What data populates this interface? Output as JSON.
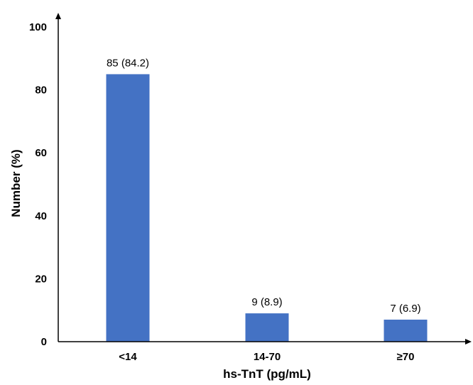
{
  "chart_data": {
    "type": "bar",
    "categories": [
      "<14",
      "14-70",
      "≥70"
    ],
    "values": [
      85,
      9,
      7
    ],
    "data_labels": [
      "85 (84.2)",
      "9 (8.9)",
      "7 (6.9)"
    ],
    "title": "",
    "xlabel": "hs-TnT (pg/mL)",
    "ylabel": "Number (%)",
    "ylim": [
      0,
      100
    ],
    "yticks": [
      0,
      20,
      40,
      60,
      80,
      100
    ],
    "grid": false,
    "bar_color": "#4472C4"
  }
}
